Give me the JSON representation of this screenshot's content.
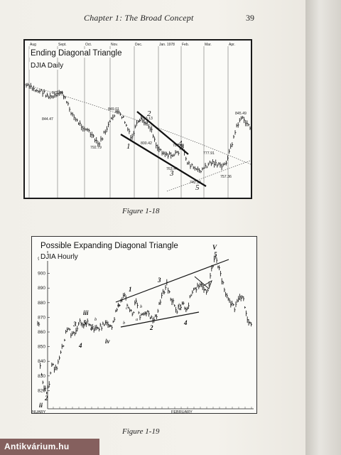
{
  "header": {
    "running_head": "Chapter 1: The Broad Concept",
    "page_number": "39"
  },
  "figure1": {
    "title": "Ending Diagonal Triangle",
    "subtitle": "DJIA Daily",
    "caption": "Figure 1-18",
    "months": [
      "Aug",
      "Sept.",
      "Oct.",
      "Nov.",
      "Dec.",
      "Jan. 1978",
      "Feb.",
      "Mar.",
      "Apr."
    ],
    "price_labels": [
      "879.76",
      "844.47",
      "849.01",
      "792.79",
      "813.13",
      "800.42",
      "787.40",
      "763.44",
      "777.91",
      "742.12",
      "757.36",
      "845.49"
    ],
    "wave_labels": [
      "1",
      "2",
      "3",
      "4",
      "5"
    ]
  },
  "figure2": {
    "title": "Possible Expanding Diagonal Triangle",
    "subtitle": "DJIA Hourly",
    "caption": "Figure 1-19",
    "y_ticks": [
      "910",
      "900",
      "890",
      "880",
      "870",
      "860",
      "850",
      "840",
      "830",
      "820"
    ],
    "x_labels": [
      "1980 JANUARY",
      "FEBRUARY"
    ],
    "wave_labels": [
      "ii",
      "2",
      "3",
      "4",
      "iii",
      "5",
      "iv",
      "1",
      "2",
      "3",
      "4",
      "V",
      "5"
    ],
    "subwave_labels": [
      "a",
      "b",
      "c",
      "a",
      "b",
      "c",
      "a",
      "b",
      "c",
      "a",
      "b",
      "c"
    ]
  },
  "watermark": "Antikvárium.hu"
}
